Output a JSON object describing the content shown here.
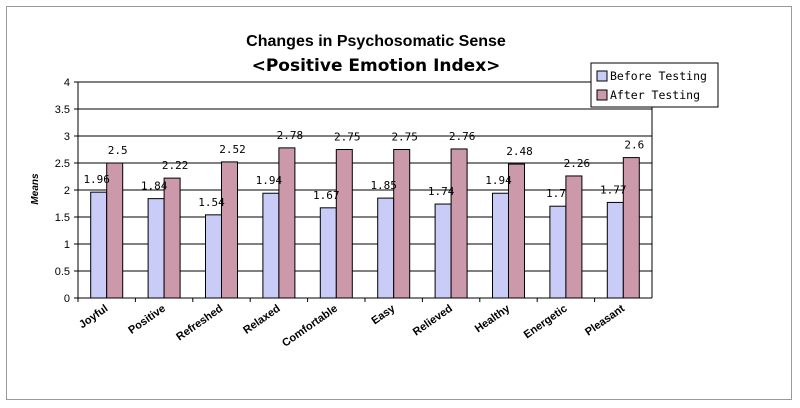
{
  "chart_data": {
    "type": "bar",
    "title": "Changes in Psychosomatic Sense",
    "subtitle": "<Positive Emotion Index>",
    "xlabel": "",
    "ylabel": "Means",
    "ylim": [
      0,
      4
    ],
    "yticks": [
      "0",
      "0.5",
      "1",
      "1.5",
      "2",
      "2.5",
      "3",
      "3.5",
      "4"
    ],
    "grid": "horizontal",
    "legend_position": "top-right",
    "categories": [
      "Joyful",
      "Positive",
      "Refreshed",
      "Relaxed",
      "Comfortable",
      "Easy",
      "Relieved",
      "Healthy",
      "Energetic",
      "Pleasant"
    ],
    "series": [
      {
        "name": "Before Testing",
        "color": "#c9ccf6",
        "values": [
          1.96,
          1.84,
          1.54,
          1.94,
          1.67,
          1.85,
          1.74,
          1.94,
          1.7,
          1.77
        ],
        "labels": [
          "1.96",
          "1.84",
          "1.54",
          "1.94",
          "1.67",
          "1.85",
          "1.74",
          "1.94",
          "1.7",
          "1.77"
        ]
      },
      {
        "name": "After Testing",
        "color": "#cc99aa",
        "values": [
          2.5,
          2.22,
          2.52,
          2.78,
          2.75,
          2.75,
          2.76,
          2.48,
          2.26,
          2.6
        ],
        "labels": [
          "2.5",
          "2.22",
          "2.52",
          "2.78",
          "2.75",
          "2.75",
          "2.76",
          "2.48",
          "2.26",
          "2.6"
        ]
      }
    ]
  }
}
